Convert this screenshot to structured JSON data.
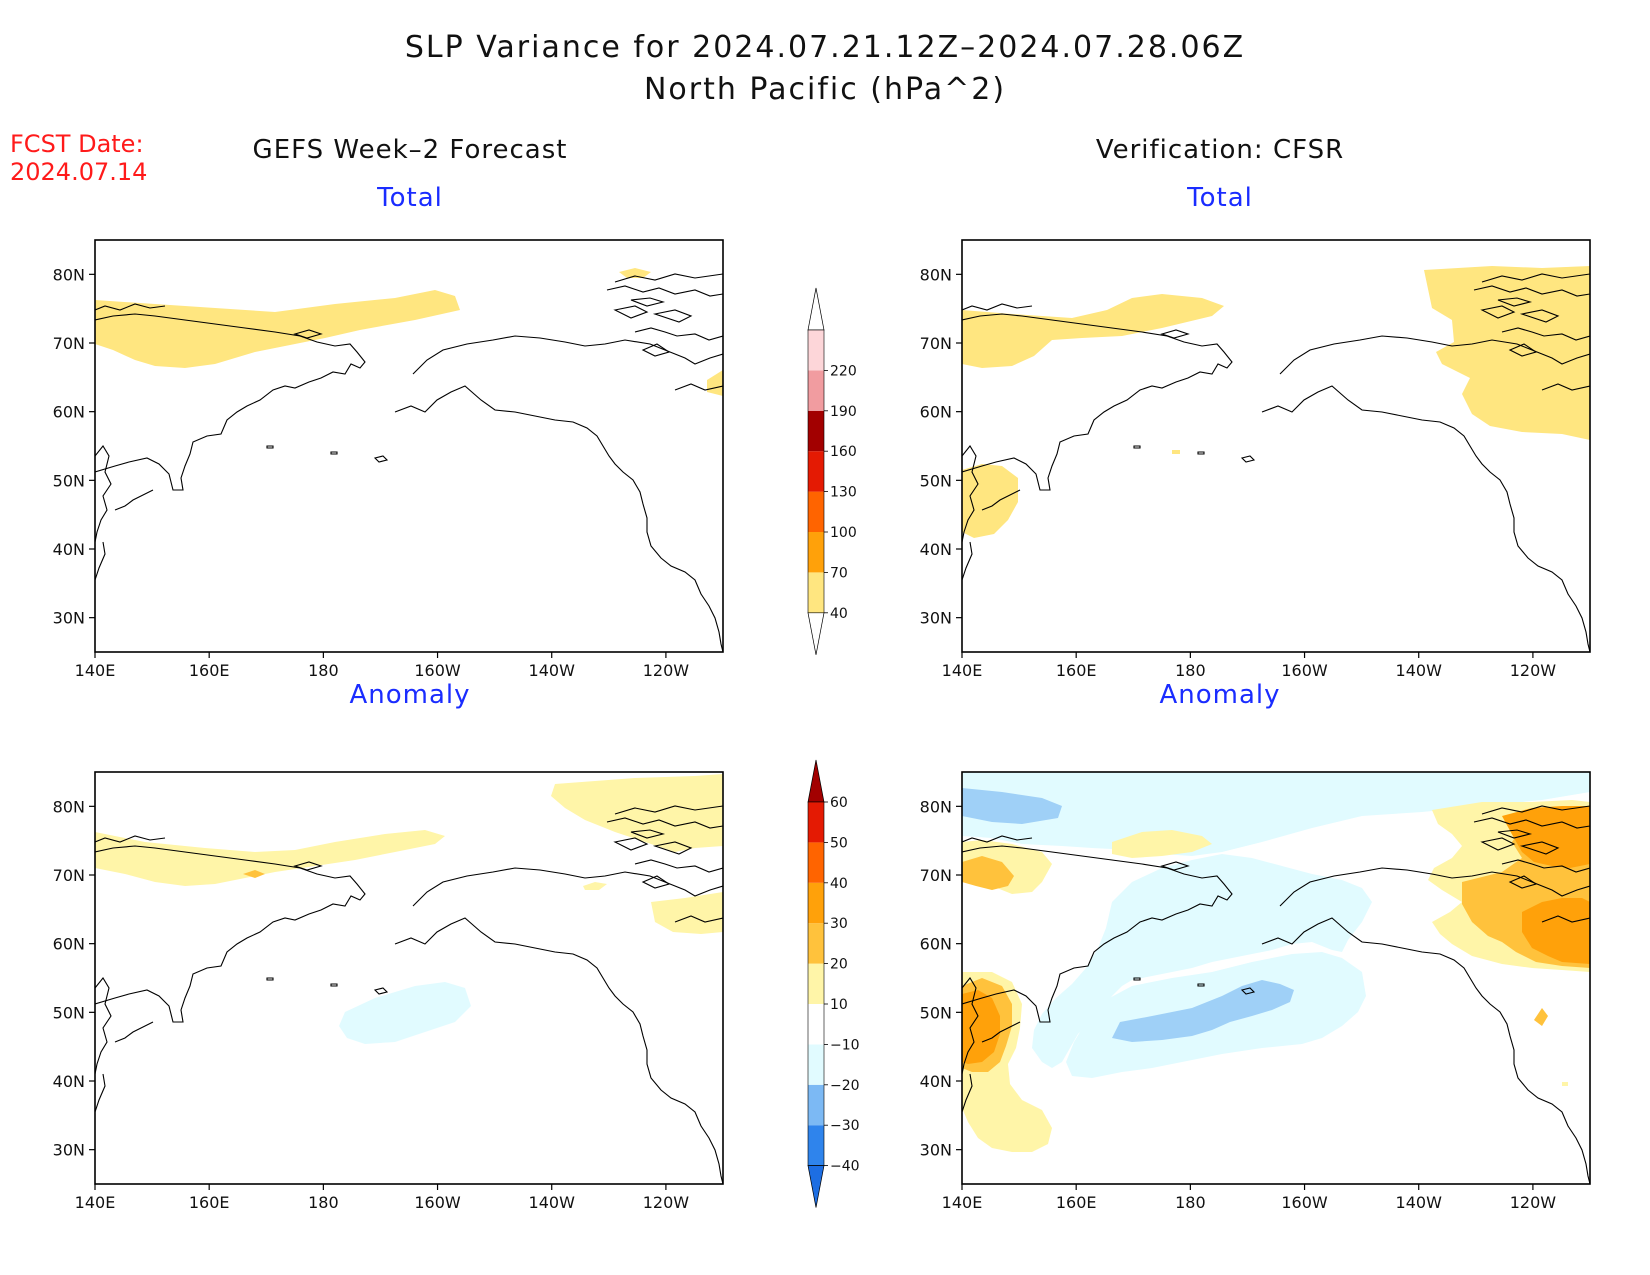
{
  "title": {
    "line1": "SLP Variance for 2024.07.21.12Z–2024.07.28.06Z",
    "line2": "North Pacific (hPa^2)"
  },
  "fcst": {
    "label": "FCST Date:",
    "date": "2024.07.14"
  },
  "columns": {
    "left": "GEFS Week–2 Forecast",
    "right": "Verification: CFSR"
  },
  "panel_titles": {
    "total": "Total",
    "anomaly": "Anomaly"
  },
  "axes": {
    "lat_ticks": [
      "80N",
      "70N",
      "60N",
      "50N",
      "40N",
      "30N"
    ],
    "lat_values": [
      80,
      70,
      60,
      50,
      40,
      30
    ],
    "lon_ticks": [
      "140E",
      "160E",
      "180",
      "160W",
      "140W",
      "120W"
    ],
    "lon_values": [
      140,
      160,
      180,
      200,
      220,
      240
    ],
    "lon_range": [
      140,
      250
    ],
    "lat_range": [
      25,
      85
    ]
  },
  "colorbars": {
    "total": {
      "labels": [
        "40",
        "70",
        "100",
        "130",
        "160",
        "190",
        "220"
      ],
      "colors": [
        "#ffe680",
        "#ffa10a",
        "#ff6400",
        "#e41a03",
        "#a20000",
        "#f19ca0",
        "#fdd6d9"
      ]
    },
    "anomaly": {
      "labels": [
        "−40",
        "−30",
        "−20",
        "−10",
        "10",
        "20",
        "30",
        "40",
        "50",
        "60"
      ],
      "colors": [
        "#1d6ee3",
        "#2f84ec",
        "#7cb9f4",
        "#e1fbff",
        "#ffffff",
        "#fff5a8",
        "#ffc23c",
        "#ffa10a",
        "#ff6400",
        "#e41a03",
        "#a20000"
      ]
    }
  },
  "shading_colors": {
    "t40": "#ffe680",
    "a10": "#fff5a8",
    "a20": "#ffc23c",
    "a30": "#ffa10a",
    "an10": "#e1fbff",
    "an20": "#9fd0f7"
  }
}
